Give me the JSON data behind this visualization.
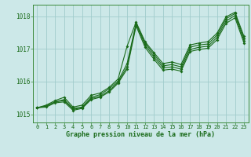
{
  "title": "Graphe pression niveau de la mer (hPa)",
  "bg_color": "#cce8e8",
  "line_color": "#1a6b1a",
  "grid_color": "#a0cccc",
  "spine_color": "#3a8a3a",
  "xlim": [
    -0.5,
    23.5
  ],
  "ylim": [
    1014.75,
    1018.35
  ],
  "yticks": [
    1015,
    1016,
    1017,
    1018
  ],
  "xticks": [
    0,
    1,
    2,
    3,
    4,
    5,
    6,
    7,
    8,
    9,
    10,
    11,
    12,
    13,
    14,
    15,
    16,
    17,
    18,
    19,
    20,
    21,
    22,
    23
  ],
  "series": [
    [
      1015.2,
      1015.28,
      1015.42,
      1015.52,
      1015.22,
      1015.28,
      1015.58,
      1015.65,
      1015.82,
      1016.08,
      1017.08,
      1017.82,
      1017.22,
      1016.88,
      1016.55,
      1016.6,
      1016.52,
      1017.12,
      1017.18,
      1017.22,
      1017.48,
      1017.98,
      1018.12,
      1017.38
    ],
    [
      1015.2,
      1015.25,
      1015.38,
      1015.45,
      1015.18,
      1015.22,
      1015.52,
      1015.6,
      1015.78,
      1016.02,
      1016.55,
      1017.78,
      1017.18,
      1016.82,
      1016.48,
      1016.52,
      1016.45,
      1017.05,
      1017.12,
      1017.15,
      1017.42,
      1017.92,
      1018.08,
      1017.32
    ],
    [
      1015.2,
      1015.25,
      1015.38,
      1015.42,
      1015.15,
      1015.2,
      1015.48,
      1015.55,
      1015.72,
      1015.98,
      1016.45,
      1017.75,
      1017.12,
      1016.75,
      1016.42,
      1016.45,
      1016.38,
      1016.98,
      1017.05,
      1017.08,
      1017.35,
      1017.85,
      1018.02,
      1017.25
    ],
    [
      1015.2,
      1015.22,
      1015.35,
      1015.38,
      1015.12,
      1015.18,
      1015.45,
      1015.52,
      1015.68,
      1015.95,
      1016.38,
      1017.7,
      1017.05,
      1016.68,
      1016.35,
      1016.38,
      1016.32,
      1016.92,
      1016.98,
      1017.02,
      1017.28,
      1017.78,
      1017.95,
      1017.18
    ]
  ]
}
